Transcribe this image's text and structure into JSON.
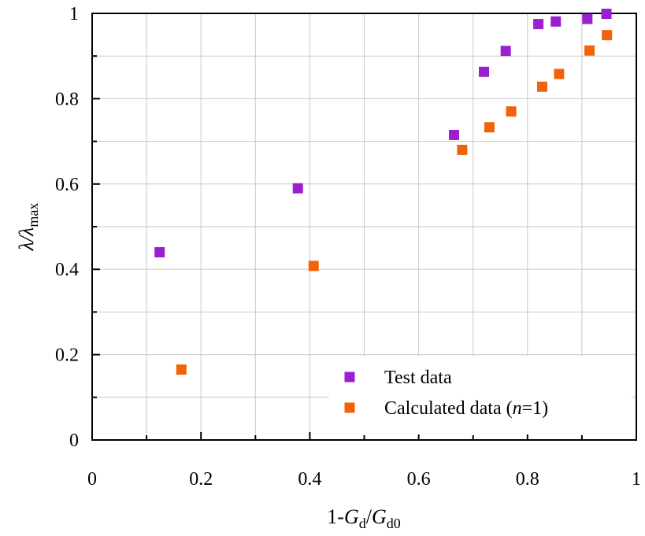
{
  "chart_data": {
    "type": "scatter",
    "title": "",
    "xlabel": {
      "pre": "1-",
      "g1": "G",
      "s1": "d",
      "slash": "/",
      "g2": "G",
      "s2": "d0"
    },
    "ylabel": {
      "sym": "λ/λ",
      "sub": "max"
    },
    "xlim": [
      0,
      1
    ],
    "ylim": [
      0,
      1
    ],
    "x_ticks": [
      "0",
      "0.2",
      "0.4",
      "0.6",
      "0.8",
      "1"
    ],
    "y_ticks": [
      "0",
      "0.2",
      "0.4",
      "0.6",
      "0.8",
      "1"
    ],
    "grid": true,
    "legend_position": "bottom-right",
    "series": [
      {
        "name": "Test data",
        "color": "#9b1fd1",
        "marker": "square",
        "x": [
          0.124,
          0.378,
          0.665,
          0.72,
          0.76,
          0.82,
          0.852,
          0.91,
          0.945
        ],
        "y": [
          0.44,
          0.59,
          0.715,
          0.863,
          0.912,
          0.975,
          0.981,
          0.987,
          0.999
        ]
      },
      {
        "name": "Calculated data (n=1)",
        "legend_parts": [
          "Calculated data (",
          "n",
          "=1)"
        ],
        "color": "#f2620a",
        "marker": "square",
        "x": [
          0.164,
          0.407,
          0.68,
          0.73,
          0.77,
          0.827,
          0.858,
          0.914,
          0.946
        ],
        "y": [
          0.165,
          0.408,
          0.68,
          0.733,
          0.77,
          0.828,
          0.858,
          0.913,
          0.949
        ]
      }
    ]
  }
}
